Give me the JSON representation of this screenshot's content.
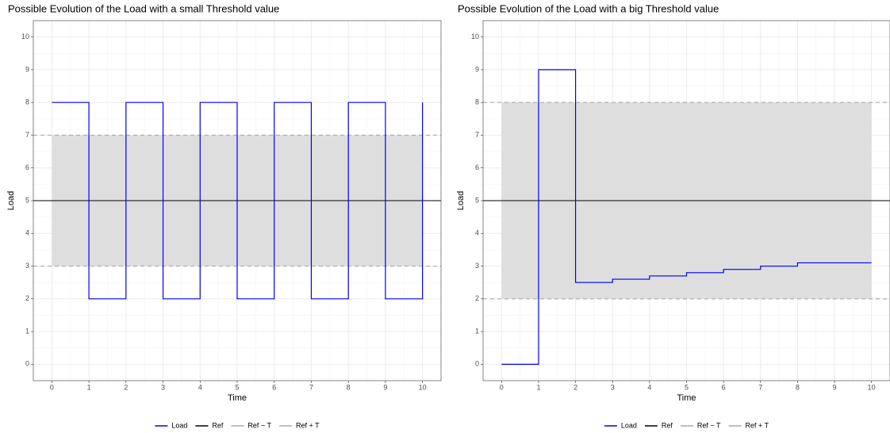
{
  "chart_data": [
    {
      "type": "step",
      "title": "Possible Evolution of the Load with a small Threshold value",
      "x_label": "Time",
      "y_label": "Load",
      "x": [
        0,
        1,
        2,
        3,
        4,
        5,
        6,
        7,
        8,
        9,
        10
      ],
      "series": [
        {
          "name": "Load",
          "color": "#0000ff",
          "values": [
            8,
            2,
            8,
            2,
            8,
            2,
            8,
            2,
            8,
            2,
            8
          ]
        }
      ],
      "hlines": [
        {
          "name": "Ref",
          "color": "#000000",
          "value": 5,
          "dashed": false
        },
        {
          "name": "Ref − T",
          "color": "#aaaaaa",
          "value": 3,
          "dashed": true
        },
        {
          "name": "Ref + T",
          "color": "#aaaaaa",
          "value": 7,
          "dashed": true
        }
      ],
      "band_color": "#dedede",
      "xlim": [
        -0.5,
        10.5
      ],
      "ylim": [
        -0.5,
        10.5
      ],
      "xticks": [
        0,
        1,
        2,
        3,
        4,
        5,
        6,
        7,
        8,
        9,
        10
      ],
      "yticks": [
        0,
        1,
        2,
        3,
        4,
        5,
        6,
        7,
        8,
        9,
        10
      ],
      "grid": true,
      "legend": "bottom"
    },
    {
      "type": "step",
      "title": "Possible Evolution of the Load with a big Threshold value",
      "x_label": "Time",
      "y_label": "Load",
      "x": [
        0,
        1,
        2,
        3,
        4,
        5,
        6,
        7,
        8,
        9,
        10
      ],
      "series": [
        {
          "name": "Load",
          "color": "#0000ff",
          "values": [
            0,
            9,
            2.5,
            2.6,
            2.7,
            2.8,
            2.9,
            3.0,
            3.1,
            3.1,
            3.1
          ]
        }
      ],
      "hlines": [
        {
          "name": "Ref",
          "color": "#000000",
          "value": 5,
          "dashed": false
        },
        {
          "name": "Ref − T",
          "color": "#aaaaaa",
          "value": 2,
          "dashed": true
        },
        {
          "name": "Ref + T",
          "color": "#aaaaaa",
          "value": 8,
          "dashed": true
        }
      ],
      "band_color": "#dedede",
      "xlim": [
        -0.5,
        10.5
      ],
      "ylim": [
        -0.5,
        10.5
      ],
      "xticks": [
        0,
        1,
        2,
        3,
        4,
        5,
        6,
        7,
        8,
        9,
        10
      ],
      "yticks": [
        0,
        1,
        2,
        3,
        4,
        5,
        6,
        7,
        8,
        9,
        10
      ],
      "grid": true,
      "legend": "bottom"
    }
  ]
}
